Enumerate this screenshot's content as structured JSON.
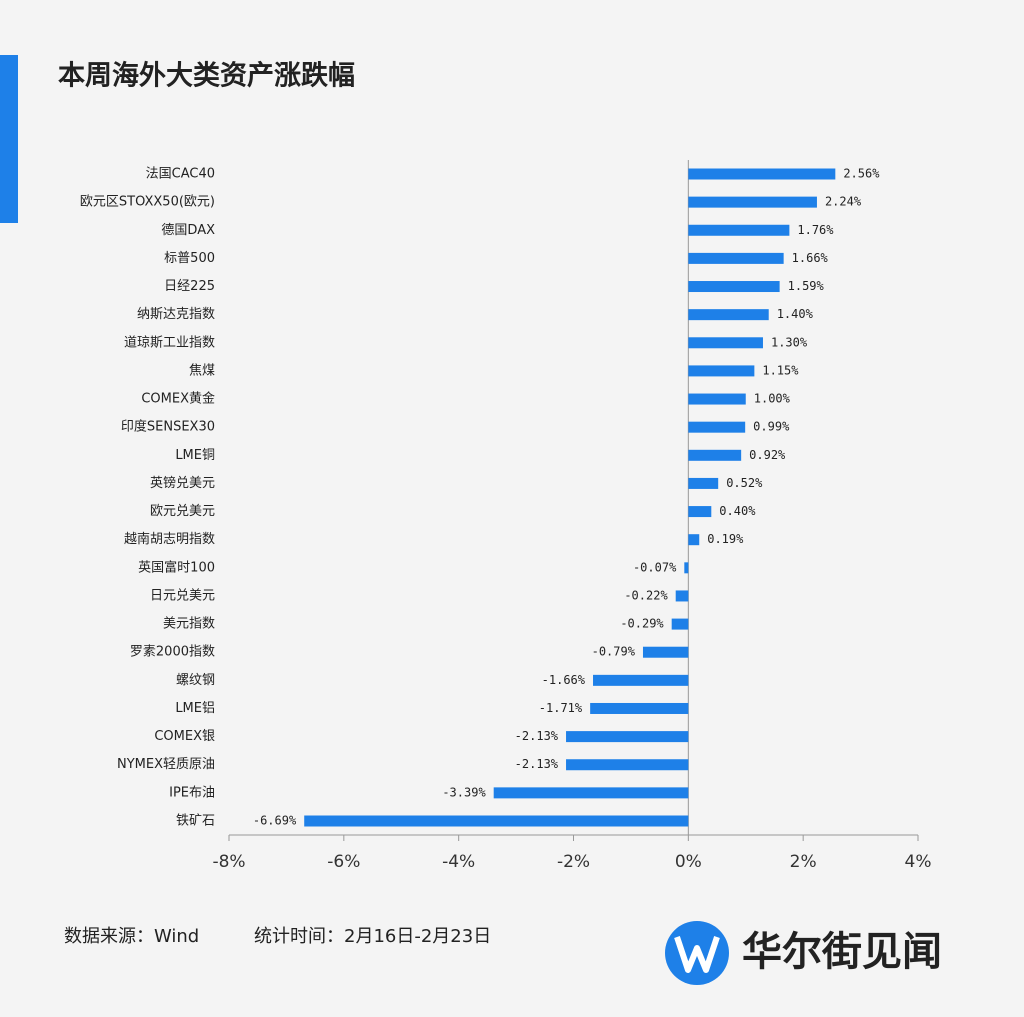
{
  "chart_data": {
    "type": "barh",
    "title": "本周海外大类资产涨跌幅",
    "categories": [
      "法国CAC40",
      "欧元区STOXX50(欧元)",
      "德国DAX",
      "标普500",
      "日经225",
      "纳斯达克指数",
      "道琼斯工业指数",
      "焦煤",
      "COMEX黄金",
      "印度SENSEX30",
      "LME铜",
      "英镑兑美元",
      "欧元兑美元",
      "越南胡志明指数",
      "英国富时100",
      "日元兑美元",
      "美元指数",
      "罗素2000指数",
      "螺纹钢",
      "LME铝",
      "COMEX银",
      "NYMEX轻质原油",
      "IPE布油",
      "铁矿石"
    ],
    "values": [
      2.56,
      2.24,
      1.76,
      1.66,
      1.59,
      1.4,
      1.3,
      1.15,
      1.0,
      0.99,
      0.92,
      0.52,
      0.4,
      0.19,
      -0.07,
      -0.22,
      -0.29,
      -0.79,
      -1.66,
      -1.71,
      -2.13,
      -2.13,
      -3.39,
      -6.69
    ],
    "value_labels": [
      "2.56%",
      "2.24%",
      "1.76%",
      "1.66%",
      "1.59%",
      "1.40%",
      "1.30%",
      "1.15%",
      "1.00%",
      "0.99%",
      "0.92%",
      "0.52%",
      "0.40%",
      "0.19%",
      "-0.07%",
      "-0.22%",
      "-0.29%",
      "-0.79%",
      "-1.66%",
      "-1.71%",
      "-2.13%",
      "-2.13%",
      "-3.39%",
      "-6.69%"
    ],
    "color": "#1e80e8",
    "xlim": [
      -8,
      4
    ],
    "xticks": [
      {
        "value": -8,
        "label": "-8%"
      },
      {
        "value": -6,
        "label": "-6%"
      },
      {
        "value": -4,
        "label": "-4%"
      },
      {
        "value": -2,
        "label": "-2%"
      },
      {
        "value": 0,
        "label": "0%"
      },
      {
        "value": 2,
        "label": "2%"
      },
      {
        "value": 4,
        "label": "4%"
      }
    ],
    "grid": false
  },
  "footer": {
    "source": "数据来源：Wind",
    "period": "统计时间：2月16日-2月23日",
    "brand": "华尔街见闻"
  }
}
